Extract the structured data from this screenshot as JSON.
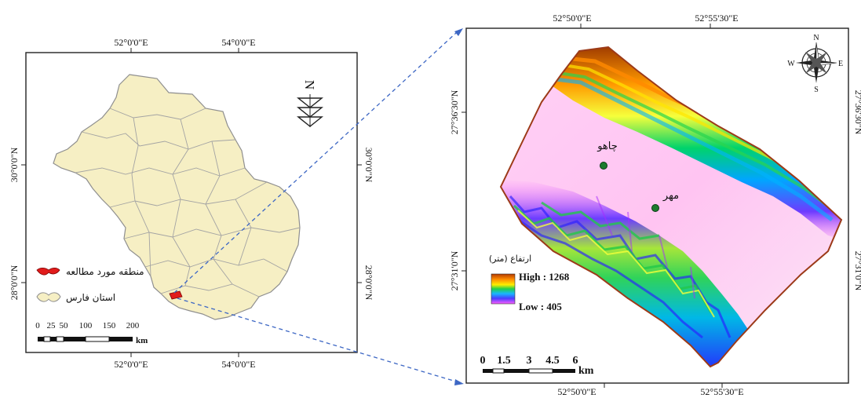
{
  "left_map": {
    "top_ticks": [
      "52°0'0\"E",
      "54°0'0\"E"
    ],
    "bottom_ticks": [
      "52°0'0\"E",
      "54°0'0\"E"
    ],
    "left_ticks": [
      "30°0'0\"N",
      "28°0'0\"N"
    ],
    "right_ticks": [
      "30°0'0\"N",
      "28°0'0\"N"
    ],
    "north_label": "N",
    "legend": {
      "study_area": "منطقه مورد مطالعه",
      "province": "استان فارس",
      "study_area_color": "#e11b1b",
      "province_color": "#f6efc4"
    },
    "scale_labels": [
      "0",
      "25",
      "50",
      "100",
      "150",
      "200"
    ],
    "scale_unit": "km"
  },
  "right_map": {
    "top_ticks": [
      "52°50'0\"E",
      "52°55'30\"E"
    ],
    "bottom_ticks": [
      "52°50'0\"E",
      "52°55'30\"E"
    ],
    "left_ticks": [
      "27°36'30\"N",
      "27°31'0\"N"
    ],
    "right_ticks": [
      "27°36'30\"N",
      "27°31'0\"N"
    ],
    "compass": {
      "n": "N",
      "s": "S",
      "e": "E",
      "w": "W"
    },
    "points": [
      {
        "name": "چاهو"
      },
      {
        "name": "مهر"
      }
    ],
    "legend": {
      "title": "ارتفاع (متر)",
      "high": "High : 1268",
      "low": "Low : 405"
    },
    "scale_labels": [
      "0",
      "1.5",
      "3",
      "4.5",
      "6"
    ],
    "scale_unit": "km"
  }
}
